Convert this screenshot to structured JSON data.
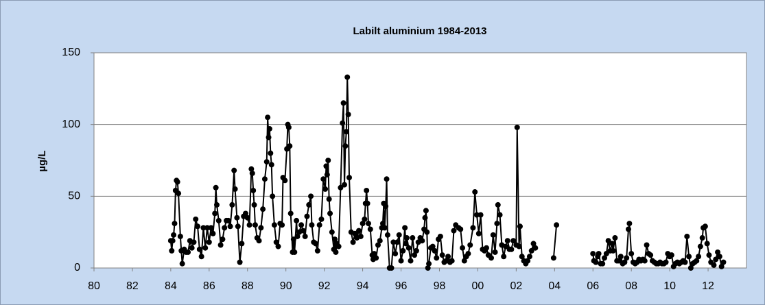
{
  "chart_data": {
    "type": "line",
    "title": "Labilt aluminium 1984-2013",
    "y_label": "µg/L",
    "color": "#000000",
    "grid": true,
    "xlim": [
      1980,
      2014
    ],
    "ylim": [
      0,
      150
    ],
    "xticks": [
      {
        "value": 1980,
        "label": "80"
      },
      {
        "value": 1982,
        "label": "82"
      },
      {
        "value": 1984,
        "label": "84"
      },
      {
        "value": 1986,
        "label": "86"
      },
      {
        "value": 1988,
        "label": "88"
      },
      {
        "value": 1990,
        "label": "90"
      },
      {
        "value": 1992,
        "label": "92"
      },
      {
        "value": 1994,
        "label": "94"
      },
      {
        "value": 1996,
        "label": "96"
      },
      {
        "value": 1998,
        "label": "98"
      },
      {
        "value": 2000,
        "label": "00"
      },
      {
        "value": 2002,
        "label": "02"
      },
      {
        "value": 2004,
        "label": "04"
      },
      {
        "value": 2006,
        "label": "06"
      },
      {
        "value": 2008,
        "label": "08"
      },
      {
        "value": 2010,
        "label": "10"
      },
      {
        "value": 2012,
        "label": "12"
      }
    ],
    "yticks": [
      0,
      50,
      100,
      150
    ],
    "x": [
      1984.0,
      1984.05,
      1984.1,
      1984.15,
      1984.2,
      1984.25,
      1984.3,
      1984.35,
      1984.4,
      1984.5,
      1984.55,
      1984.6,
      1984.7,
      1984.8,
      1984.9,
      1985.0,
      1985.1,
      1985.2,
      1985.3,
      1985.4,
      1985.5,
      1985.6,
      1985.7,
      1985.8,
      1985.9,
      1986.0,
      1986.1,
      1986.2,
      1986.3,
      1986.35,
      1986.4,
      1986.5,
      1986.6,
      1986.7,
      1986.8,
      1986.9,
      1987.0,
      1987.1,
      1987.2,
      1987.3,
      1987.35,
      1987.45,
      1987.5,
      1987.6,
      1987.7,
      1987.8,
      1987.9,
      1988.0,
      1988.1,
      1988.2,
      1988.25,
      1988.3,
      1988.35,
      1988.4,
      1988.5,
      1988.6,
      1988.7,
      1988.8,
      1988.9,
      1989.0,
      1989.05,
      1989.1,
      1989.15,
      1989.2,
      1989.25,
      1989.3,
      1989.4,
      1989.5,
      1989.6,
      1989.7,
      1989.8,
      1989.85,
      1989.95,
      1990.05,
      1990.1,
      1990.15,
      1990.2,
      1990.25,
      1990.35,
      1990.4,
      1990.45,
      1990.55,
      1990.6,
      1990.7,
      1990.8,
      1990.9,
      1991.0,
      1991.1,
      1991.2,
      1991.3,
      1991.35,
      1991.45,
      1991.55,
      1991.65,
      1991.75,
      1991.85,
      1991.95,
      1992.05,
      1992.1,
      1992.15,
      1992.2,
      1992.25,
      1992.3,
      1992.4,
      1992.5,
      1992.55,
      1992.6,
      1992.65,
      1992.75,
      1992.85,
      1992.95,
      1993.0,
      1993.05,
      1993.1,
      1993.15,
      1993.2,
      1993.25,
      1993.3,
      1993.4,
      1993.5,
      1993.6,
      1993.7,
      1993.8,
      1993.9,
      1994.0,
      1994.1,
      1994.15,
      1994.2,
      1994.25,
      1994.3,
      1994.4,
      1994.5,
      1994.55,
      1994.6,
      1994.7,
      1994.8,
      1994.9,
      1995.0,
      1995.05,
      1995.1,
      1995.15,
      1995.2,
      1995.25,
      1995.3,
      1995.4,
      1995.5,
      1995.6,
      1995.7,
      1995.8,
      1995.9,
      1996.0,
      1996.1,
      1996.2,
      1996.25,
      1996.3,
      1996.4,
      1996.5,
      1996.6,
      1996.7,
      1996.8,
      1996.9,
      1997.0,
      1997.1,
      1997.2,
      1997.25,
      1997.3,
      1997.35,
      1997.4,
      1997.45,
      1997.55,
      1997.65,
      1997.75,
      1997.85,
      1997.95,
      1998.05,
      1998.15,
      1998.25,
      1998.35,
      1998.45,
      1998.55,
      1998.65,
      1998.75,
      1998.85,
      1999.0,
      1999.1,
      1999.2,
      1999.3,
      1999.4,
      1999.5,
      1999.6,
      1999.75,
      1999.85,
      1999.95,
      2000.05,
      2000.15,
      2000.25,
      2000.35,
      2000.45,
      2000.55,
      2000.7,
      2000.8,
      2000.9,
      2001.0,
      2001.05,
      2001.15,
      2001.25,
      2001.35,
      2001.45,
      2001.55,
      2001.65,
      2001.75,
      2001.85,
      2002.0,
      2002.05,
      2002.15,
      2002.2,
      2002.3,
      2002.4,
      2002.5,
      2002.6,
      2002.7,
      2002.8,
      2002.9,
      2003.0,
      2003.5,
      2003.95,
      2004.1,
      2005.0,
      2006.0,
      2006.05,
      2006.15,
      2006.25,
      2006.3,
      2006.4,
      2006.5,
      2006.6,
      2006.7,
      2006.8,
      2006.9,
      2007.0,
      2007.05,
      2007.15,
      2007.25,
      2007.35,
      2007.45,
      2007.55,
      2007.65,
      2007.75,
      2007.85,
      2007.9,
      2008.0,
      2008.1,
      2008.2,
      2008.3,
      2008.4,
      2008.5,
      2008.6,
      2008.7,
      2008.8,
      2008.9,
      2009.0,
      2009.1,
      2009.2,
      2009.3,
      2009.4,
      2009.5,
      2009.6,
      2009.7,
      2009.8,
      2009.9,
      2010.0,
      2010.1,
      2010.2,
      2010.3,
      2010.4,
      2010.5,
      2010.6,
      2010.7,
      2010.8,
      2010.9,
      2011.0,
      2011.1,
      2011.2,
      2011.3,
      2011.4,
      2011.5,
      2011.6,
      2011.7,
      2011.75,
      2011.85,
      2011.95,
      2012.05,
      2012.15,
      2012.3,
      2012.4,
      2012.5,
      2012.6,
      2012.7,
      2012.8
    ],
    "values": [
      19,
      12,
      19,
      23,
      31,
      54,
      61,
      60,
      52,
      22,
      12,
      3,
      13,
      11,
      11,
      19,
      14,
      18,
      34,
      29,
      13,
      8,
      28,
      14,
      28,
      18,
      28,
      24,
      38,
      56,
      44,
      33,
      16,
      20,
      28,
      33,
      33,
      29,
      44,
      68,
      55,
      35,
      29,
      4,
      17,
      36,
      38,
      35,
      30,
      69,
      66,
      54,
      44,
      30,
      21,
      19,
      28,
      41,
      62,
      74,
      105,
      91,
      97,
      80,
      72,
      50,
      30,
      18,
      15,
      31,
      30,
      63,
      61,
      83,
      100,
      98,
      85,
      38,
      11,
      20,
      11,
      33,
      22,
      25,
      30,
      26,
      22,
      36,
      44,
      50,
      30,
      18,
      17,
      12,
      30,
      34,
      62,
      55,
      71,
      65,
      75,
      48,
      38,
      25,
      13,
      20,
      11,
      17,
      15,
      56,
      101,
      115,
      58,
      85,
      95,
      133,
      107,
      63,
      25,
      18,
      24,
      21,
      26,
      22,
      31,
      34,
      45,
      54,
      45,
      31,
      27,
      9,
      6,
      10,
      7,
      16,
      19,
      28,
      31,
      45,
      28,
      43,
      62,
      23,
      0,
      0,
      18,
      10,
      18,
      23,
      5,
      12,
      28,
      17,
      21,
      14,
      5,
      21,
      9,
      12,
      18,
      21,
      19,
      27,
      35,
      40,
      25,
      0,
      3,
      14,
      15,
      12,
      7,
      20,
      22,
      9,
      4,
      5,
      8,
      4,
      5,
      26,
      30,
      28,
      27,
      14,
      5,
      8,
      10,
      16,
      28,
      53,
      37,
      24,
      37,
      13,
      12,
      14,
      9,
      7,
      23,
      11,
      31,
      44,
      37,
      16,
      8,
      15,
      19,
      13,
      13,
      19,
      16,
      98,
      15,
      29,
      8,
      5,
      3,
      5,
      8,
      12,
      17,
      14,
      null,
      7,
      30,
      null,
      10,
      5,
      4,
      8,
      10,
      3,
      3,
      7,
      10,
      19,
      12,
      17,
      12,
      21,
      5,
      5,
      8,
      3,
      4,
      7,
      27,
      31,
      10,
      4,
      3,
      4,
      6,
      5,
      6,
      5,
      16,
      10,
      9,
      5,
      4,
      3,
      3,
      4,
      3,
      3,
      4,
      10,
      8,
      9,
      1,
      3,
      4,
      3,
      4,
      5,
      4,
      22,
      8,
      0,
      3,
      4,
      5,
      8,
      15,
      21,
      28,
      29,
      17,
      9,
      4,
      2,
      6,
      11,
      8,
      1,
      4
    ]
  }
}
